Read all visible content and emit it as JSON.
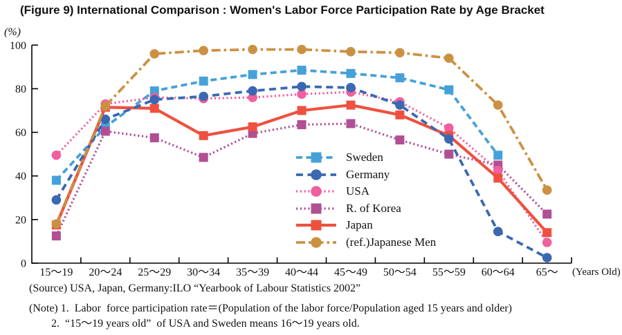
{
  "chart_data": {
    "type": "line",
    "title": "(Figure 9) International Comparison : Women's Labor Force Participation Rate by Age Bracket",
    "ylabel": "(%)",
    "xlabel": "(Years Old)",
    "ylim": [
      0,
      100
    ],
    "yticks": [
      0,
      20,
      40,
      60,
      80,
      100
    ],
    "grid": false,
    "legend_position": "center-right-inside",
    "categories": [
      "15～19",
      "20～24",
      "25～29",
      "30～34",
      "35～39",
      "40～44",
      "45～49",
      "50～54",
      "55～59",
      "60～64",
      "65～"
    ],
    "series": [
      {
        "name": "Sweden",
        "color": "#45a1d8",
        "line": "dashed",
        "dash": "9 5.5",
        "width": 3.8,
        "marker": "square",
        "values": [
          38,
          62.5,
          79,
          83.5,
          86.5,
          88.5,
          87,
          85,
          79.5,
          49.5,
          null
        ]
      },
      {
        "name": "Germany",
        "color": "#3a68b2",
        "line": "dashed",
        "dash": "10 6.5",
        "width": 3.8,
        "marker": "circle",
        "values": [
          29,
          66,
          75,
          76.5,
          79,
          81,
          80.5,
          72.5,
          57,
          14.5,
          2.5
        ]
      },
      {
        "name": "USA",
        "color": "#f0609e",
        "line": "dotted",
        "dash": "2.2 3.6",
        "width": 3.2,
        "marker": "circle",
        "values": [
          49.5,
          73,
          76,
          75.5,
          76,
          77.5,
          78.5,
          74,
          62,
          42.5,
          9.5
        ]
      },
      {
        "name": "R. of Korea",
        "color": "#b04f94",
        "line": "dotted",
        "dash": "2.2 3.6",
        "width": 3.2,
        "marker": "square",
        "values": [
          12.5,
          60.5,
          57.5,
          48.5,
          59.5,
          63.5,
          64,
          56.5,
          50,
          45,
          22.5
        ]
      },
      {
        "name": "Japan",
        "color": "#ee5140",
        "line": "solid",
        "dash": "",
        "width": 4.2,
        "marker": "square",
        "values": [
          17.5,
          71.5,
          71,
          58.5,
          62.5,
          70,
          72.5,
          68,
          58.5,
          39,
          14
        ]
      },
      {
        "name": "(ref.)Japanese Men",
        "color": "#cb9143",
        "line": "dash-dot",
        "dash": "13 5 3.5 5",
        "width": 3.8,
        "marker": "circle",
        "values": [
          18,
          72,
          96,
          97.5,
          98,
          98,
          97,
          96.5,
          94,
          72.5,
          33.5
        ]
      }
    ],
    "draw_order": [
      "Sweden",
      "R. of Korea",
      "USA",
      "Japan",
      "Germany",
      "(ref.)Japanese Men"
    ]
  },
  "notes": {
    "source": "(Source) USA, Japan, Germany:ILO “Yearbook of Labour Statistics 2002”",
    "note1": "(Note) 1.  Labor  force participation rate＝(Population of the labor force/Population aged 15 years and older)",
    "note2": "2.  “15～19 years old”  of USA and Sweden means 16～19 years old."
  }
}
